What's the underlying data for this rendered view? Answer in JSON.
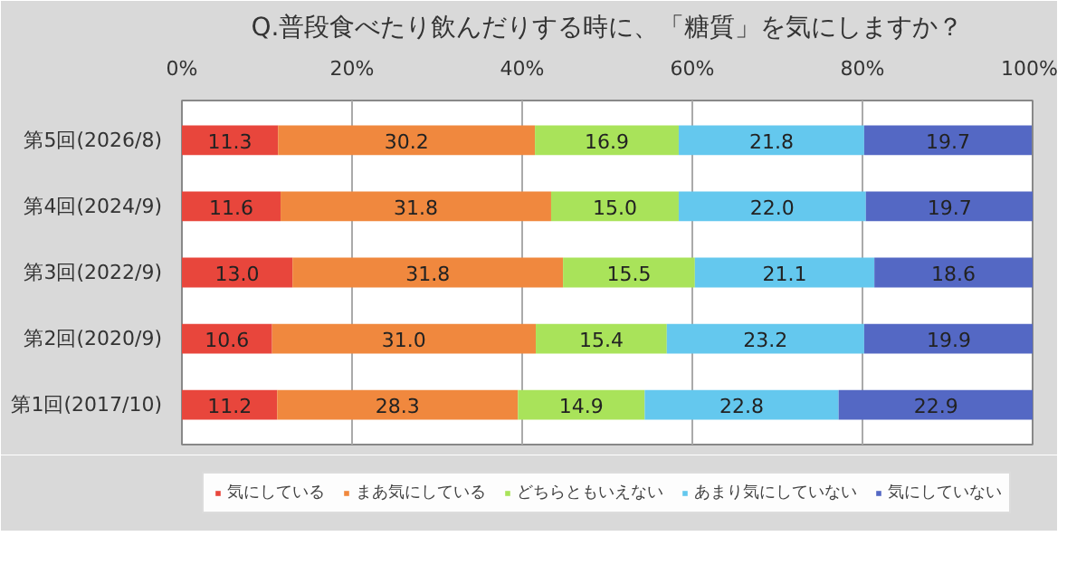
{
  "chart_data": {
    "type": "bar",
    "orientation": "horizontal",
    "stacked": true,
    "title": "Q.普段食べたり飲んだりする時に、「糖質」を気にしますか？",
    "categories": [
      "第5回(2026/8)",
      "第4回(2024/9)",
      "第3回(2022/9)",
      "第2回(2020/9)",
      "第1回(2017/10)"
    ],
    "series": [
      {
        "name": "気にしている",
        "color": "#e8463c",
        "values": [
          11.3,
          11.6,
          13.0,
          10.6,
          11.2
        ],
        "value_labels": [
          "11.3",
          "11.6",
          "13.0",
          "10.6",
          "11.2"
        ]
      },
      {
        "name": "まあ気にしている",
        "color": "#f0883e",
        "values": [
          30.2,
          31.8,
          31.8,
          31.0,
          28.3
        ],
        "value_labels": [
          "30.2",
          "31.8",
          "31.8",
          "31.0",
          "28.3"
        ]
      },
      {
        "name": "どちらともいえない",
        "color": "#a9e35a",
        "values": [
          16.9,
          15.0,
          15.5,
          15.4,
          14.9
        ],
        "value_labels": [
          "16.9",
          "15.0",
          "15.5",
          "15.4",
          "14.9"
        ]
      },
      {
        "name": "あまり気にしていない",
        "color": "#64c8ee",
        "values": [
          21.8,
          22.0,
          21.1,
          23.2,
          22.8
        ],
        "value_labels": [
          "21.8",
          "22.0",
          "21.1",
          "23.2",
          "22.8"
        ]
      },
      {
        "name": "気にしていない",
        "color": "#5468c4",
        "values": [
          19.7,
          19.7,
          18.6,
          19.9,
          22.9
        ],
        "value_labels": [
          "19.7",
          "19.7",
          "18.6",
          "19.9",
          "22.9"
        ]
      }
    ],
    "xlim": [
      0,
      100
    ],
    "xticks": [
      {
        "value": 0,
        "label": "0%"
      },
      {
        "value": 20,
        "label": "20%"
      },
      {
        "value": 40,
        "label": "40%"
      },
      {
        "value": 60,
        "label": "60%"
      },
      {
        "value": 80,
        "label": "80%"
      },
      {
        "value": 100,
        "label": "100%"
      }
    ],
    "grid": "x",
    "legend": "bottom",
    "data_labels": true
  }
}
